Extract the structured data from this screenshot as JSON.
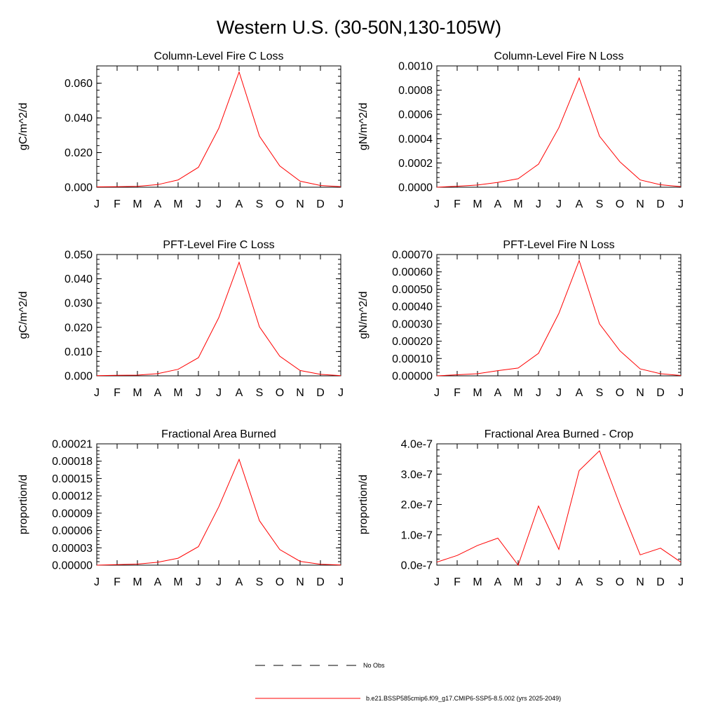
{
  "figure": {
    "title": "Western U.S. (30-50N,130-105W)",
    "colors": {
      "series": "#ff0000",
      "axes": "#000000",
      "background": "#ffffff"
    }
  },
  "legend": {
    "placement": "bottom-center",
    "entries": [
      {
        "label": "No Obs",
        "style": "dashed",
        "color": "#000000"
      },
      {
        "label": "b.e21.BSSP585cmip6.f09_g17.CMIP6-SSP5-8.5.002 (yrs 2025-2049)",
        "style": "solid",
        "color": "#ff0000"
      }
    ]
  },
  "chart_data": [
    {
      "type": "line",
      "title": "Column-Level Fire C Loss",
      "xlabel": "",
      "ylabel": "gC/m^2/d",
      "categories": [
        "J",
        "F",
        "M",
        "A",
        "M",
        "J",
        "J",
        "A",
        "S",
        "O",
        "N",
        "D",
        "J"
      ],
      "ylim": [
        0,
        0.07
      ],
      "yticks": [
        0,
        0.02,
        0.04,
        0.06
      ],
      "ytick_labels": [
        "0.000",
        "0.020",
        "0.040",
        "0.060"
      ],
      "series": [
        {
          "values": [
            0.0002,
            0.0003,
            0.0005,
            0.0015,
            0.0042,
            0.0115,
            0.034,
            0.0665,
            0.0295,
            0.0123,
            0.0035,
            0.001,
            0.0003
          ]
        }
      ]
    },
    {
      "type": "line",
      "title": "Column-Level Fire N Loss",
      "xlabel": "",
      "ylabel": "gN/m^2/d",
      "categories": [
        "J",
        "F",
        "M",
        "A",
        "M",
        "J",
        "J",
        "A",
        "S",
        "O",
        "N",
        "D",
        "J"
      ],
      "ylim": [
        0,
        0.001
      ],
      "yticks": [
        0,
        0.0002,
        0.0004,
        0.0006,
        0.0008,
        0.001
      ],
      "ytick_labels": [
        "0.0000",
        "0.0002",
        "0.0004",
        "0.0006",
        "0.0008",
        "0.0010"
      ],
      "series": [
        {
          "values": [
            0.0,
            8e-06,
            1.8e-05,
            4e-05,
            7e-05,
            0.00019,
            0.00049,
            0.0009,
            0.00042,
            0.00021,
            6e-05,
            2e-05,
            5e-06
          ]
        }
      ]
    },
    {
      "type": "line",
      "title": "PFT-Level Fire C Loss",
      "xlabel": "",
      "ylabel": "gC/m^2/d",
      "categories": [
        "J",
        "F",
        "M",
        "A",
        "M",
        "J",
        "J",
        "A",
        "S",
        "O",
        "N",
        "D",
        "J"
      ],
      "ylim": [
        0,
        0.05
      ],
      "yticks": [
        0,
        0.01,
        0.02,
        0.03,
        0.04,
        0.05
      ],
      "ytick_labels": [
        "0.000",
        "0.010",
        "0.020",
        "0.030",
        "0.040",
        "0.050"
      ],
      "series": [
        {
          "values": [
            0.0001,
            0.0002,
            0.0003,
            0.0009,
            0.0027,
            0.0075,
            0.024,
            0.0468,
            0.0202,
            0.0081,
            0.0022,
            0.0006,
            0.0001
          ]
        }
      ]
    },
    {
      "type": "line",
      "title": "PFT-Level Fire N Loss",
      "xlabel": "",
      "ylabel": "gN/m^2/d",
      "categories": [
        "J",
        "F",
        "M",
        "A",
        "M",
        "J",
        "J",
        "A",
        "S",
        "O",
        "N",
        "D",
        "J"
      ],
      "ylim": [
        0,
        0.0007
      ],
      "yticks": [
        0,
        0.0001,
        0.0002,
        0.0003,
        0.0004,
        0.0005,
        0.0006,
        0.0007
      ],
      "ytick_labels": [
        "0.00000",
        "0.00010",
        "0.00020",
        "0.00030",
        "0.00040",
        "0.00050",
        "0.00060",
        "0.00070"
      ],
      "series": [
        {
          "values": [
            0.0,
            6e-06,
            1.2e-05,
            3e-05,
            4.5e-05,
            0.00013,
            0.00036,
            0.000665,
            0.0003,
            0.000145,
            4e-05,
            1.2e-05,
            2e-06
          ]
        }
      ]
    },
    {
      "type": "line",
      "title": "Fractional Area Burned",
      "xlabel": "",
      "ylabel": "proportion/d",
      "categories": [
        "J",
        "F",
        "M",
        "A",
        "M",
        "J",
        "J",
        "A",
        "S",
        "O",
        "N",
        "D",
        "J"
      ],
      "ylim": [
        0,
        0.00021
      ],
      "yticks": [
        0,
        3e-05,
        6e-05,
        9e-05,
        0.00012,
        0.00015,
        0.00018,
        0.00021
      ],
      "ytick_labels": [
        "0.00000",
        "0.00003",
        "0.00006",
        "0.00009",
        "0.00012",
        "0.00015",
        "0.00018",
        "0.00021"
      ],
      "series": [
        {
          "values": [
            0.0,
            8e-07,
            1.8e-06,
            5e-06,
            1.2e-05,
            3.2e-05,
            0.000101,
            0.000183,
            7.7e-05,
            2.7e-05,
            6.5e-06,
            1.6e-06,
            2e-07
          ]
        }
      ]
    },
    {
      "type": "line",
      "title": "Fractional Area Burned - Crop",
      "xlabel": "",
      "ylabel": "proportion/d",
      "categories": [
        "J",
        "F",
        "M",
        "A",
        "M",
        "J",
        "J",
        "A",
        "S",
        "O",
        "N",
        "D",
        "J"
      ],
      "ylim": [
        0,
        4e-07
      ],
      "yticks": [
        0,
        1e-07,
        2e-07,
        3e-07,
        4e-07
      ],
      "ytick_labels": [
        "0.0e-7",
        "1.0e-7",
        "2.0e-7",
        "3.0e-7",
        "4.0e-7"
      ],
      "series": [
        {
          "values": [
            1e-08,
            3.2e-08,
            6.5e-08,
            8.9e-08,
            0.0,
            1.95e-07,
            5.2e-08,
            3.12e-07,
            3.77e-07,
            2e-07,
            3.4e-08,
            5.6e-08,
            1e-08
          ]
        }
      ]
    }
  ]
}
